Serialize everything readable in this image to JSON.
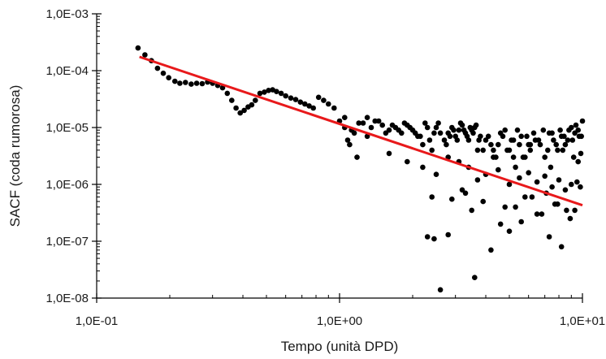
{
  "chart_data": {
    "type": "scatter",
    "title": "",
    "xlabel": "Tempo (unità DPD)",
    "ylabel": "SACF (coda rumorosa)",
    "x_scale": "log",
    "y_scale": "log",
    "xlim": [
      0.1,
      10
    ],
    "ylim": [
      1e-08,
      0.001
    ],
    "x_tick_labels": [
      "1,0E-01",
      "1,0E+00",
      "1,0E+01"
    ],
    "y_tick_labels": [
      "1,0E-08",
      "1,0E-07",
      "1,0E-06",
      "1,0E-05",
      "1,0E-04",
      "1,0E-03"
    ],
    "grid": false,
    "legend": false,
    "colors": {
      "points": "#000000",
      "fit": "#e8191b",
      "axis": "#000000"
    },
    "series": [
      {
        "kind": "points",
        "x": [
          0.148,
          0.158,
          0.168,
          0.178,
          0.188,
          0.198,
          0.21,
          0.22,
          0.232,
          0.245,
          0.258,
          0.272,
          0.286,
          0.3,
          0.315,
          0.33,
          0.345,
          0.36,
          0.375,
          0.39,
          0.405,
          0.42,
          0.435,
          0.45,
          0.47,
          0.49,
          0.51,
          0.53,
          0.55,
          0.575,
          0.6,
          0.63,
          0.66,
          0.69,
          0.72,
          0.75,
          0.78,
          0.82,
          0.86,
          0.9,
          0.95,
          1.0,
          1.05,
          1.1,
          1.15,
          1.2,
          1.3,
          1.4,
          1.5,
          1.6,
          1.7,
          1.8,
          1.9,
          2.0,
          2.1,
          2.2,
          2.3,
          2.4,
          2.45,
          2.55,
          2.7,
          2.8,
          2.9,
          3.0,
          3.1,
          3.2,
          3.3,
          3.4,
          3.5,
          3.6,
          3.7,
          3.8,
          4.0,
          4.2,
          4.4,
          4.6,
          4.8,
          5.0,
          5.2,
          5.4,
          5.6,
          5.8,
          6.0,
          6.3,
          6.6,
          6.9,
          7.2,
          7.5,
          7.8,
          8.1,
          8.4,
          8.7,
          9.0,
          9.3,
          9.6,
          9.9,
          1.05,
          1.12,
          1.25,
          1.35,
          1.45,
          1.55,
          1.65,
          1.75,
          1.85,
          1.95,
          2.05,
          2.15,
          2.25,
          2.35,
          2.5,
          2.6,
          2.75,
          2.85,
          2.95,
          3.05,
          3.15,
          3.25,
          3.35,
          3.45,
          3.55,
          3.65,
          3.75,
          3.9,
          4.1,
          4.3,
          4.5,
          4.7,
          4.9,
          5.1,
          5.3,
          5.5,
          5.7,
          5.9,
          6.1,
          6.4,
          6.7,
          7.0,
          7.3,
          7.6,
          7.9,
          8.2,
          8.5,
          8.8,
          9.1,
          9.4,
          9.7,
          10.0,
          1.08,
          1.18,
          1.3,
          1.6,
          1.9,
          2.2,
          2.5,
          2.8,
          3.1,
          3.4,
          3.7,
          4.0,
          4.5,
          5.0,
          5.5,
          6.0,
          6.5,
          7.0,
          7.5,
          8.0,
          8.5,
          9.0,
          9.5,
          2.4,
          2.45,
          2.6,
          2.8,
          3.3,
          3.5,
          3.6,
          4.2,
          4.6,
          5.0,
          5.3,
          5.6,
          6.2,
          6.8,
          7.3,
          7.7,
          8.2,
          8.9,
          9.3,
          2.3,
          2.9,
          3.2,
          3.9,
          4.8,
          5.8,
          6.5,
          7.1,
          7.9,
          8.6,
          9.8,
          4.3,
          5.2,
          6.1,
          7.4,
          8.3,
          9.2,
          9.6,
          9.85
        ],
        "y": [
          0.00025,
          0.00019,
          0.00015,
          0.00011,
          9e-05,
          7.5e-05,
          6.5e-05,
          6e-05,
          6.2e-05,
          5.8e-05,
          6e-05,
          5.9e-05,
          6.3e-05,
          6e-05,
          5.5e-05,
          5e-05,
          4e-05,
          3e-05,
          2.2e-05,
          1.8e-05,
          2e-05,
          2.3e-05,
          2.5e-05,
          3e-05,
          4e-05,
          4.2e-05,
          4.5e-05,
          4.6e-05,
          4.3e-05,
          4e-05,
          3.6e-05,
          3.3e-05,
          3.1e-05,
          2.8e-05,
          2.6e-05,
          2.4e-05,
          2.2e-05,
          3.4e-05,
          3e-05,
          2.6e-05,
          2.2e-05,
          1.3e-05,
          1e-05,
          5e-06,
          8e-06,
          1.2e-05,
          1.5e-05,
          1.3e-05,
          1.1e-05,
          9e-06,
          1e-05,
          8e-06,
          1.1e-05,
          9e-06,
          7e-06,
          5e-06,
          1e-05,
          4e-06,
          8e-06,
          1.2e-05,
          6e-06,
          8e-06,
          1e-05,
          7e-06,
          9e-06,
          1.1e-05,
          8e-06,
          6e-06,
          9e-06,
          1e-05,
          4e-06,
          7e-06,
          6e-06,
          5e-06,
          3e-06,
          8e-06,
          9e-06,
          4e-06,
          6e-06,
          9e-06,
          7e-06,
          3e-06,
          5e-06,
          8e-06,
          6e-06,
          9e-06,
          4e-06,
          8e-06,
          5e-06,
          9e-06,
          7e-06,
          6e-06,
          1e-05,
          8e-06,
          9e-06,
          7e-06,
          1.5e-05,
          9e-06,
          1.2e-05,
          1e-05,
          1.3e-05,
          8e-06,
          1.1e-05,
          9e-06,
          1.2e-05,
          1e-05,
          8e-06,
          7e-06,
          1.2e-05,
          6e-06,
          1e-05,
          8e-06,
          5e-06,
          7e-06,
          9e-06,
          6e-06,
          1.2e-05,
          9e-06,
          7e-06,
          1e-05,
          8e-06,
          1.1e-05,
          6e-06,
          4e-06,
          7e-06,
          3e-06,
          5e-06,
          7e-06,
          4e-06,
          6e-06,
          2e-06,
          5e-06,
          3e-06,
          7e-06,
          4e-06,
          6e-06,
          5e-06,
          3e-06,
          8e-06,
          6e-06,
          4e-06,
          7e-06,
          5e-06,
          9e-06,
          6e-06,
          1.1e-05,
          7e-06,
          1.3e-05,
          6e-06,
          3e-06,
          7e-06,
          3.5e-06,
          2.5e-06,
          2e-06,
          1.5e-06,
          3e-06,
          2.5e-06,
          2e-06,
          1.2e-06,
          1.5e-06,
          1.8e-06,
          1e-06,
          1.3e-06,
          1.6e-06,
          1.1e-06,
          1.4e-06,
          9e-07,
          1.2e-06,
          8e-07,
          1e-06,
          1.1e-06,
          6e-07,
          1.1e-07,
          1.4e-08,
          1.3e-07,
          7e-07,
          3.5e-07,
          2.3e-08,
          7e-08,
          2e-07,
          1.5e-07,
          4e-07,
          2.2e-07,
          6e-07,
          3e-07,
          1.2e-07,
          4.5e-07,
          8e-08,
          2.5e-07,
          3.5e-07,
          1.2e-07,
          5.5e-07,
          8e-07,
          5e-07,
          4e-07,
          6e-07,
          3e-07,
          7e-07,
          4.5e-07,
          3.5e-07,
          9e-07,
          4e-06,
          3e-06,
          5e-06,
          2e-06,
          4e-06,
          3e-06,
          2.5e-06,
          3.5e-06
        ]
      },
      {
        "kind": "line",
        "x": [
          0.15,
          10
        ],
        "y": [
          0.000175,
          4.3e-07
        ]
      }
    ]
  }
}
